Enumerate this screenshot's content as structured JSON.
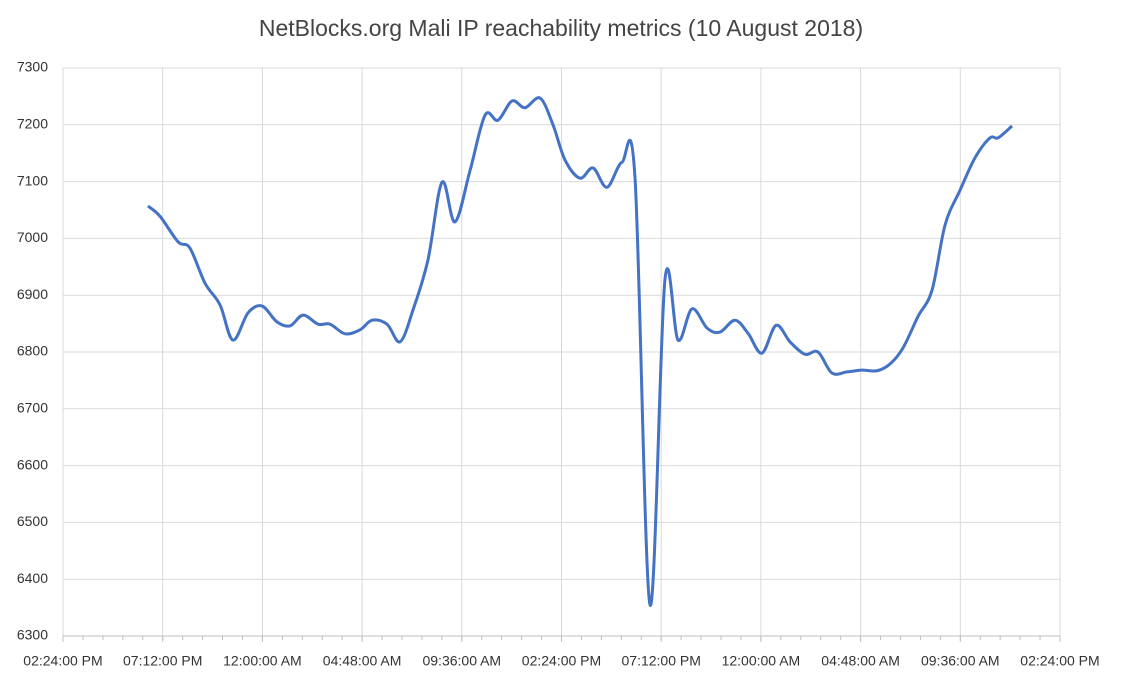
{
  "chart_data": {
    "type": "line",
    "title": "NetBlocks.org Mali IP reachability metrics (10 August 2018)",
    "x": [
      4.09,
      4.67,
      5.54,
      6.11,
      6.84,
      7.56,
      8.18,
      8.91,
      9.58,
      10.3,
      10.93,
      11.56,
      12.28,
      12.86,
      13.58,
      14.3,
      14.88,
      15.6,
      16.23,
      16.85,
      17.57,
      18.25,
      18.87,
      19.6,
      20.32,
      20.94,
      21.62,
      22.24,
      22.97,
      23.59,
      24.17,
      24.89,
      25.52,
      26.19,
      26.91,
      27.54,
      28.26,
      28.98,
      29.61,
      30.28,
      31.01,
      31.63,
      32.35,
      32.98,
      33.65,
      34.33,
      35.0,
      35.72,
      36.35,
      37.02,
      37.75,
      38.47,
      39.19,
      39.82,
      40.44,
      41.17,
      41.84,
      42.47,
      43.19,
      43.91,
      44.63,
      45.02,
      45.69
    ],
    "series": [
      {
        "color": "#4472c4",
        "values": [
          7057,
          7039,
          6994,
          6983,
          6921,
          6883,
          6821,
          6869,
          6881,
          6853,
          6846,
          6865,
          6849,
          6849,
          6832,
          6839,
          6856,
          6849,
          6818,
          6874,
          6962,
          7099,
          7029,
          7120,
          7217,
          7208,
          7242,
          7230,
          7247,
          7200,
          7138,
          7106,
          7124,
          7090,
          7134,
          7106,
          6355,
          6927,
          6821,
          6876,
          6842,
          6835,
          6856,
          6833,
          6798,
          6847,
          6818,
          6796,
          6800,
          6763,
          6765,
          6768,
          6767,
          6779,
          6807,
          6863,
          6909,
          7024,
          7085,
          7142,
          7177,
          7177,
          7198
        ]
      }
    ],
    "xlim": [
      0,
      48
    ],
    "xticks": [
      {
        "value": 0,
        "label": "02:24:00 PM"
      },
      {
        "value": 4.8,
        "label": "07:12:00 PM"
      },
      {
        "value": 9.6,
        "label": "12:00:00 AM"
      },
      {
        "value": 14.4,
        "label": "04:48:00 AM"
      },
      {
        "value": 19.2,
        "label": "09:36:00 AM"
      },
      {
        "value": 24,
        "label": "02:24:00 PM"
      },
      {
        "value": 28.8,
        "label": "07:12:00 PM"
      },
      {
        "value": 33.6,
        "label": "12:00:00 AM"
      },
      {
        "value": 38.4,
        "label": "04:48:00 AM"
      },
      {
        "value": 43.2,
        "label": "09:36:00 AM"
      },
      {
        "value": 48,
        "label": "02:24:00 PM"
      }
    ],
    "ylim": [
      6300,
      7300
    ],
    "yticks": [
      6300,
      6400,
      6500,
      6600,
      6700,
      6800,
      6900,
      7000,
      7100,
      7200,
      7300
    ],
    "grid": true
  }
}
